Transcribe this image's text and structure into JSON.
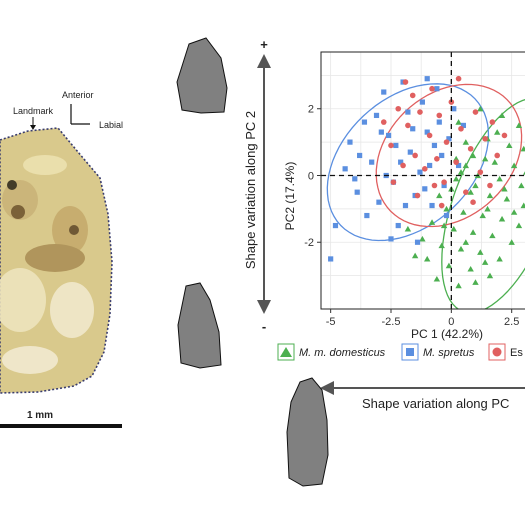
{
  "tooth": {
    "landmark_label": "Landmark",
    "anterior_label": "Anterior",
    "labial_label": "Labial",
    "scale_label": "1 mm",
    "colors": {
      "tooth_fill": "#d9c98c",
      "tooth_edge": "#3a3d6e"
    }
  },
  "pc2_shape": {
    "title": "Shape variation along PC 2",
    "plus": "+",
    "minus": "-",
    "shape_color": "#808080"
  },
  "pc1_shape": {
    "title": "Shape variation along PC",
    "minus": "-"
  },
  "chart_data": {
    "type": "scatter",
    "xlabel": "PC 1 (42.2%)",
    "ylabel": "PC2 (17.4%)",
    "xlim": [
      -5.4,
      3.3
    ],
    "ylim": [
      -4.0,
      3.7
    ],
    "xticks": [
      -5,
      -2.5,
      0,
      2.5
    ],
    "xtick_labels": [
      "-5",
      "-2.5",
      "0",
      "2.5"
    ],
    "yticks": [
      -2,
      0,
      2
    ],
    "ytick_labels": [
      "-2",
      "0",
      "2"
    ],
    "grid": true,
    "zero_lines": true,
    "legend_position": "bottom",
    "series": [
      {
        "name": "M. m. domesticus",
        "color": "#4caf50",
        "marker": "triangle",
        "ellipse": {
          "cx": 2.1,
          "cy": -0.9,
          "rx": 3.6,
          "ry": 1.9,
          "angle": 58
        },
        "points": [
          [
            0.3,
            1.6
          ],
          [
            1.2,
            2.0
          ],
          [
            2.1,
            1.8
          ],
          [
            2.8,
            1.5
          ],
          [
            3.0,
            0.8
          ],
          [
            0.6,
            1.0
          ],
          [
            1.5,
            1.1
          ],
          [
            2.4,
            0.9
          ],
          [
            0.2,
            0.5
          ],
          [
            0.9,
            0.6
          ],
          [
            1.8,
            0.4
          ],
          [
            2.6,
            0.3
          ],
          [
            3.1,
            0.1
          ],
          [
            0.4,
            0.1
          ],
          [
            1.1,
            0.0
          ],
          [
            2.0,
            -0.1
          ],
          [
            2.9,
            -0.3
          ],
          [
            0.0,
            -0.4
          ],
          [
            0.8,
            -0.5
          ],
          [
            1.6,
            -0.6
          ],
          [
            2.3,
            -0.7
          ],
          [
            3.0,
            -0.9
          ],
          [
            -0.5,
            -0.6
          ],
          [
            -0.2,
            -1.0
          ],
          [
            0.5,
            -1.1
          ],
          [
            1.3,
            -1.2
          ],
          [
            2.1,
            -1.3
          ],
          [
            2.8,
            -1.5
          ],
          [
            -0.8,
            -1.4
          ],
          [
            0.1,
            -1.6
          ],
          [
            0.9,
            -1.7
          ],
          [
            1.7,
            -1.8
          ],
          [
            2.5,
            -2.0
          ],
          [
            -1.2,
            -1.9
          ],
          [
            -0.4,
            -2.1
          ],
          [
            0.4,
            -2.2
          ],
          [
            1.2,
            -2.3
          ],
          [
            2.0,
            -2.5
          ],
          [
            -1.0,
            -2.5
          ],
          [
            -0.1,
            -2.7
          ],
          [
            0.8,
            -2.8
          ],
          [
            1.6,
            -3.0
          ],
          [
            -0.6,
            -3.1
          ],
          [
            0.3,
            -3.3
          ],
          [
            1.0,
            -3.2
          ],
          [
            -1.5,
            -2.4
          ],
          [
            -1.8,
            -1.6
          ],
          [
            0.6,
            0.3
          ],
          [
            1.4,
            0.5
          ],
          [
            2.2,
            -0.4
          ],
          [
            1.9,
            1.3
          ],
          [
            1.0,
            -0.3
          ],
          [
            0.2,
            -0.1
          ],
          [
            1.5,
            -1.0
          ],
          [
            2.6,
            -1.1
          ],
          [
            -0.3,
            -1.5
          ],
          [
            0.6,
            -2.0
          ],
          [
            1.4,
            -2.6
          ]
        ]
      },
      {
        "name": "M. spretus",
        "color": "#5b8fe0",
        "marker": "square",
        "ellipse": {
          "cx": -1.8,
          "cy": 0.4,
          "rx": 3.5,
          "ry": 2.1,
          "angle": 22
        },
        "points": [
          [
            -4.4,
            0.2
          ],
          [
            -4.8,
            -1.5
          ],
          [
            -5.0,
            -2.5
          ],
          [
            -4.2,
            1.0
          ],
          [
            -3.9,
            -0.5
          ],
          [
            -3.6,
            1.6
          ],
          [
            -3.3,
            0.4
          ],
          [
            -3.0,
            -0.8
          ],
          [
            -2.8,
            2.5
          ],
          [
            -2.6,
            1.2
          ],
          [
            -2.4,
            -0.2
          ],
          [
            -2.2,
            -1.5
          ],
          [
            -2.0,
            2.8
          ],
          [
            -1.8,
            1.9
          ],
          [
            -1.7,
            0.7
          ],
          [
            -1.5,
            -0.6
          ],
          [
            -1.4,
            -2.0
          ],
          [
            -1.2,
            2.2
          ],
          [
            -1.0,
            1.3
          ],
          [
            -0.9,
            0.3
          ],
          [
            -0.8,
            -0.9
          ],
          [
            -0.6,
            2.6
          ],
          [
            -0.5,
            1.6
          ],
          [
            -0.4,
            0.6
          ],
          [
            -0.3,
            -0.3
          ],
          [
            -0.1,
            1.1
          ],
          [
            0.1,
            2.0
          ],
          [
            0.3,
            0.3
          ],
          [
            -3.1,
            1.8
          ],
          [
            -2.7,
            0.0
          ],
          [
            -2.3,
            0.9
          ],
          [
            -1.9,
            -0.9
          ],
          [
            -1.6,
            1.4
          ],
          [
            -1.1,
            -0.4
          ],
          [
            -0.7,
            0.9
          ],
          [
            -3.5,
            -1.2
          ],
          [
            -2.5,
            -1.9
          ],
          [
            -1.3,
            0.1
          ],
          [
            -0.2,
            -1.2
          ],
          [
            0.5,
            1.5
          ],
          [
            -4.0,
            -0.1
          ],
          [
            -2.1,
            0.4
          ],
          [
            -1.0,
            2.9
          ],
          [
            -3.8,
            0.6
          ],
          [
            -2.9,
            1.3
          ]
        ]
      },
      {
        "name": "Es",
        "color": "#e06060",
        "marker": "circle",
        "ellipse": {
          "cx": -0.1,
          "cy": 0.6,
          "rx": 3.1,
          "ry": 2.0,
          "angle": 18
        },
        "points": [
          [
            -2.8,
            1.6
          ],
          [
            -2.5,
            0.9
          ],
          [
            -2.2,
            2.0
          ],
          [
            -2.0,
            0.3
          ],
          [
            -1.8,
            1.5
          ],
          [
            -1.6,
            2.4
          ],
          [
            -1.5,
            0.6
          ],
          [
            -1.3,
            1.9
          ],
          [
            -1.1,
            0.2
          ],
          [
            -0.9,
            1.2
          ],
          [
            -0.8,
            2.6
          ],
          [
            -0.6,
            0.5
          ],
          [
            -0.5,
            1.8
          ],
          [
            -0.3,
            -0.2
          ],
          [
            -0.2,
            1.0
          ],
          [
            0.0,
            2.2
          ],
          [
            0.2,
            0.4
          ],
          [
            0.4,
            1.4
          ],
          [
            0.6,
            -0.5
          ],
          [
            0.8,
            0.8
          ],
          [
            1.0,
            1.9
          ],
          [
            1.2,
            0.1
          ],
          [
            1.4,
            1.1
          ],
          [
            1.6,
            -0.3
          ],
          [
            1.9,
            0.6
          ],
          [
            2.2,
            1.2
          ],
          [
            -1.4,
            -0.6
          ],
          [
            -0.4,
            -0.9
          ],
          [
            0.9,
            -0.8
          ],
          [
            -2.4,
            -0.2
          ],
          [
            -1.9,
            2.8
          ],
          [
            0.3,
            2.9
          ],
          [
            1.7,
            1.6
          ],
          [
            -0.7,
            -0.3
          ]
        ]
      }
    ]
  }
}
